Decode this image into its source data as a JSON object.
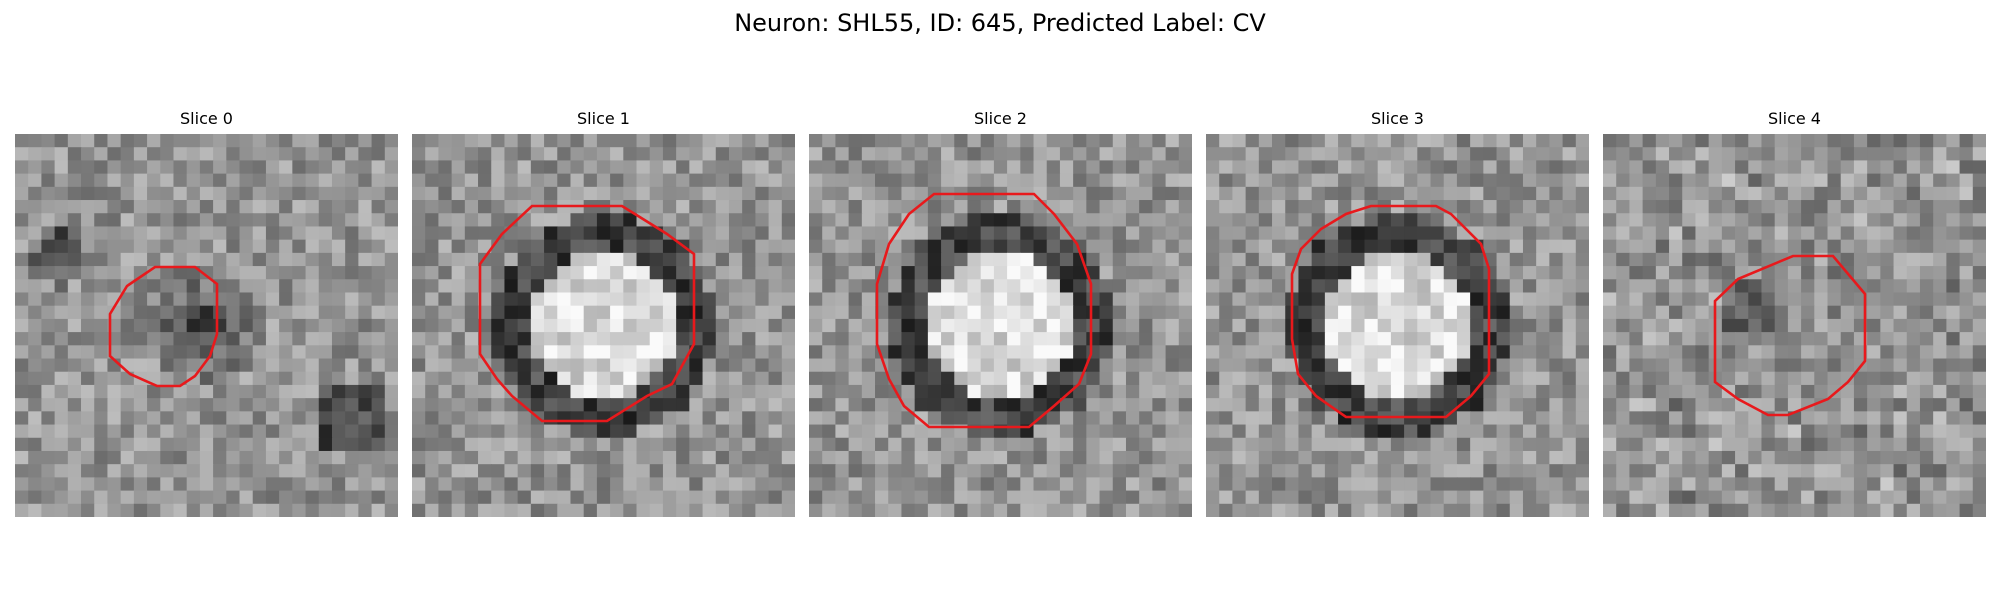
{
  "figure": {
    "title": "Neuron: SHL55, ID: 645, Predicted Label: CV"
  },
  "panels": [
    {
      "title": "Slice 0",
      "seed": 11,
      "blob": "dark",
      "outline": "small"
    },
    {
      "title": "Slice 1",
      "seed": 23,
      "blob": "ring",
      "outline": "large"
    },
    {
      "title": "Slice 2",
      "seed": 37,
      "blob": "ring",
      "outline": "large"
    },
    {
      "title": "Slice 3",
      "seed": 41,
      "blob": "ring",
      "outline": "large"
    },
    {
      "title": "Slice 4",
      "seed": 53,
      "blob": "faint",
      "outline": "small"
    }
  ],
  "colors": {
    "outline": "#e8191c",
    "background": "#ffffff"
  }
}
